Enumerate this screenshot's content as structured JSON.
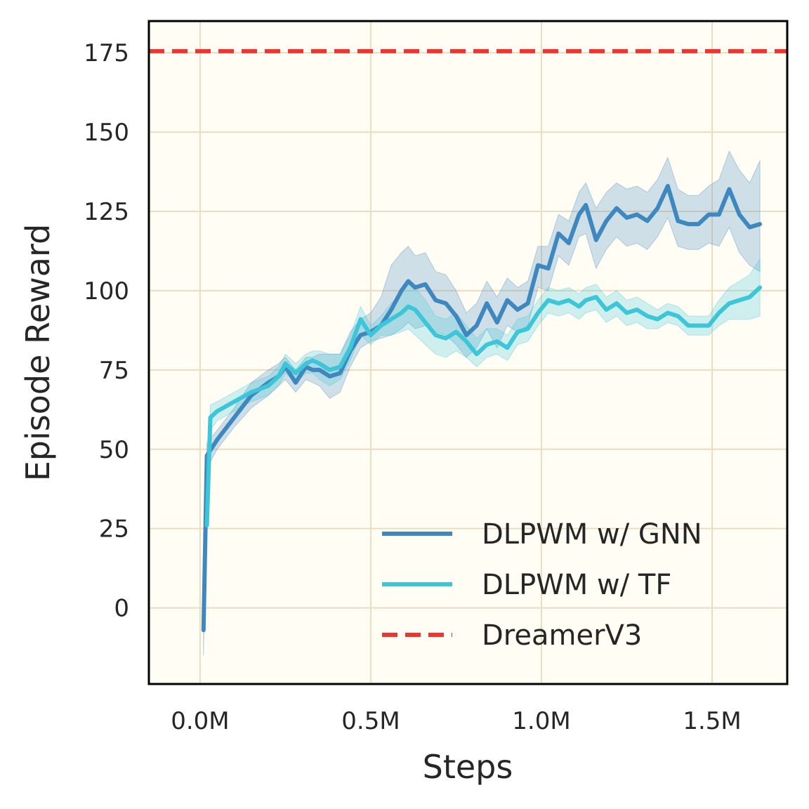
{
  "chart_data": {
    "type": "line",
    "title": "",
    "xlabel": "Steps",
    "ylabel": "Episode Reward",
    "xlim": [
      -0.15,
      1.72
    ],
    "ylim": [
      -24,
      185
    ],
    "xticks": [
      0.0,
      0.5,
      1.0,
      1.5
    ],
    "xtick_labels": [
      "0.0M",
      "0.5M",
      "1.0M",
      "1.5M"
    ],
    "yticks": [
      0,
      25,
      50,
      75,
      100,
      125,
      150,
      175
    ],
    "ytick_labels": [
      "0",
      "25",
      "50",
      "75",
      "100",
      "125",
      "150",
      "175"
    ],
    "grid": true,
    "legend_position": "lower-right",
    "colors": {
      "gnn": "#3f88bf",
      "tf": "#3cc6d8",
      "dreamer": "#f03530",
      "plot_bg": "#fffdf4",
      "grid": "#ecdcc0"
    },
    "series": [
      {
        "name": "DLPWM w/ GNN",
        "x": [
          0.01,
          0.02,
          0.05,
          0.1,
          0.15,
          0.2,
          0.23,
          0.25,
          0.28,
          0.31,
          0.33,
          0.35,
          0.38,
          0.41,
          0.44,
          0.47,
          0.5,
          0.53,
          0.56,
          0.59,
          0.61,
          0.63,
          0.66,
          0.69,
          0.72,
          0.75,
          0.78,
          0.81,
          0.84,
          0.87,
          0.9,
          0.93,
          0.96,
          0.99,
          1.02,
          1.05,
          1.08,
          1.11,
          1.13,
          1.16,
          1.19,
          1.22,
          1.25,
          1.28,
          1.31,
          1.34,
          1.37,
          1.4,
          1.43,
          1.46,
          1.49,
          1.52,
          1.55,
          1.58,
          1.61,
          1.64
        ],
        "y": [
          -7,
          48,
          53,
          60,
          67,
          71,
          73,
          76,
          71,
          76,
          75,
          75,
          73,
          74,
          81,
          86,
          87,
          89,
          94,
          100,
          103,
          101,
          102,
          97,
          96,
          92,
          86,
          89,
          96,
          90,
          97,
          94,
          96,
          108,
          107,
          118,
          115,
          124,
          127,
          116,
          122,
          126,
          123,
          124,
          122,
          126,
          133,
          122,
          121,
          121,
          124,
          124,
          132,
          124,
          120,
          121
        ],
        "lower": [
          -15,
          44,
          50,
          57,
          63,
          67,
          70,
          72,
          68,
          72,
          71,
          70,
          66,
          68,
          76,
          82,
          84,
          85,
          86,
          88,
          90,
          88,
          89,
          87,
          86,
          83,
          79,
          82,
          88,
          82,
          89,
          87,
          89,
          101,
          100,
          111,
          108,
          117,
          118,
          107,
          113,
          117,
          114,
          115,
          113,
          117,
          123,
          114,
          113,
          113,
          115,
          114,
          120,
          112,
          108,
          106
        ],
        "upper": [
          2,
          52,
          56,
          63,
          71,
          75,
          77,
          79,
          75,
          79,
          79,
          80,
          80,
          80,
          87,
          91,
          93,
          98,
          108,
          112,
          114,
          111,
          112,
          106,
          105,
          100,
          93,
          96,
          103,
          98,
          104,
          101,
          103,
          114,
          114,
          124,
          122,
          131,
          134,
          126,
          131,
          134,
          132,
          133,
          131,
          135,
          142,
          132,
          130,
          130,
          133,
          135,
          144,
          138,
          134,
          141
        ]
      },
      {
        "name": "DLPWM w/ TF",
        "x": [
          0.02,
          0.03,
          0.05,
          0.1,
          0.15,
          0.2,
          0.23,
          0.25,
          0.28,
          0.31,
          0.33,
          0.35,
          0.38,
          0.41,
          0.44,
          0.47,
          0.5,
          0.53,
          0.56,
          0.59,
          0.61,
          0.63,
          0.66,
          0.69,
          0.72,
          0.75,
          0.78,
          0.81,
          0.84,
          0.87,
          0.9,
          0.93,
          0.96,
          0.99,
          1.02,
          1.05,
          1.08,
          1.11,
          1.13,
          1.16,
          1.19,
          1.22,
          1.25,
          1.28,
          1.31,
          1.34,
          1.37,
          1.4,
          1.43,
          1.46,
          1.49,
          1.52,
          1.55,
          1.58,
          1.61,
          1.64
        ],
        "y": [
          26,
          60,
          62,
          65,
          68,
          70,
          73,
          77,
          74,
          77,
          78,
          77,
          75,
          76,
          82,
          91,
          86,
          89,
          91,
          93,
          95,
          94,
          90,
          86,
          85,
          87,
          84,
          80,
          83,
          84,
          82,
          87,
          88,
          93,
          97,
          96,
          97,
          95,
          97,
          98,
          94,
          96,
          93,
          94,
          92,
          91,
          93,
          92,
          89,
          89,
          89,
          93,
          96,
          97,
          98,
          101
        ],
        "lower": [
          22,
          56,
          59,
          62,
          65,
          67,
          70,
          74,
          71,
          74,
          74,
          72,
          70,
          72,
          78,
          86,
          83,
          86,
          86,
          87,
          88,
          86,
          83,
          80,
          79,
          81,
          79,
          76,
          79,
          80,
          78,
          83,
          84,
          89,
          93,
          92,
          93,
          91,
          93,
          94,
          90,
          92,
          89,
          90,
          88,
          88,
          90,
          89,
          86,
          86,
          86,
          89,
          91,
          91,
          91,
          92
        ],
        "upper": [
          30,
          64,
          65,
          68,
          71,
          73,
          76,
          80,
          77,
          80,
          81,
          81,
          80,
          80,
          86,
          95,
          89,
          92,
          96,
          99,
          102,
          101,
          97,
          92,
          91,
          93,
          89,
          85,
          88,
          88,
          86,
          91,
          92,
          97,
          101,
          100,
          101,
          99,
          101,
          102,
          98,
          100,
          97,
          98,
          96,
          94,
          96,
          95,
          92,
          92,
          92,
          97,
          101,
          103,
          105,
          110
        ]
      },
      {
        "name": "DreamerV3",
        "style": "dashed",
        "y_constant": 175.5
      }
    ]
  }
}
